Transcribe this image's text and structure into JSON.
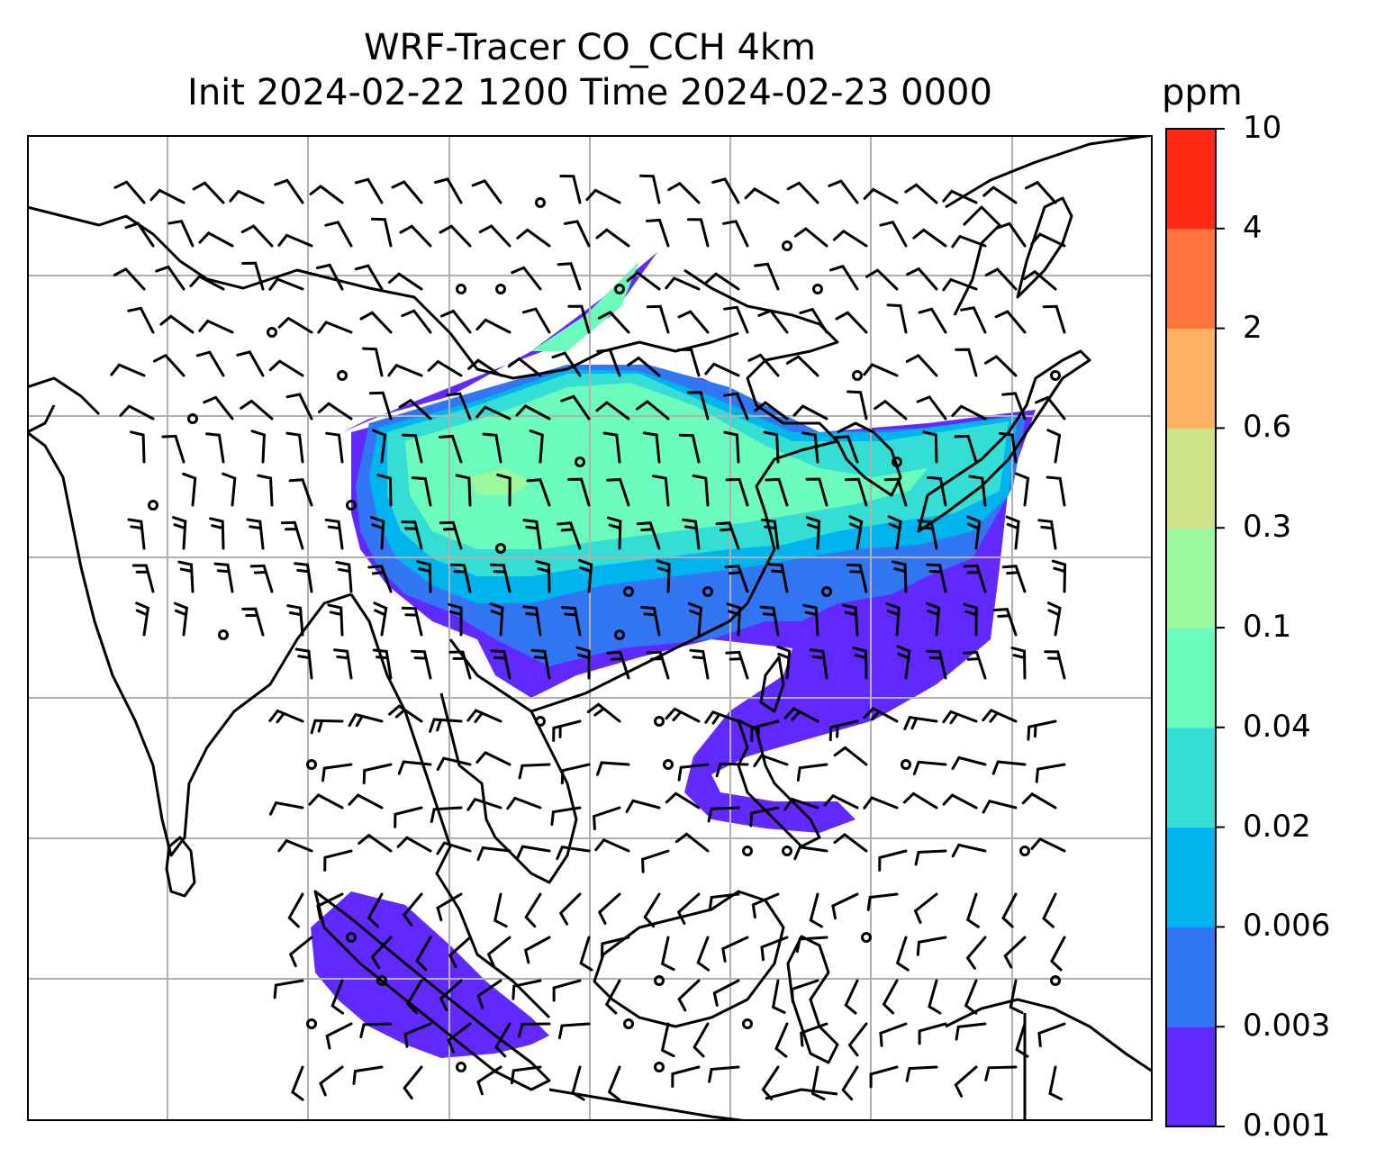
{
  "title": {
    "line1": "WRF-Tracer CO_CCH 4km",
    "line2": "Init 2024-02-22 1200 Time 2024-02-23 0000"
  },
  "colorbar": {
    "unit": "ppm",
    "levels": [
      "0.001",
      "0.003",
      "0.006",
      "0.02",
      "0.04",
      "0.1",
      "0.3",
      "0.6",
      "2",
      "4",
      "10"
    ],
    "colors": [
      "#6128ff",
      "#3276f4",
      "#00b4ee",
      "#35ded4",
      "#6bfcbd",
      "#9bf89c",
      "#cfe28a",
      "#ffb060",
      "#ff743c",
      "#ff2a16"
    ]
  },
  "map": {
    "field": "CO_CCH tracer concentration with wind barbs",
    "plume_colors": {
      "level1": "#6128ff",
      "level2": "#3276f4",
      "level3": "#00b4ee",
      "level4": "#35ded4",
      "level5": "#6bfcbd",
      "level6": "#9bf89c"
    },
    "coastline_color": "#000000",
    "grid_color": "#b0b0b0"
  }
}
